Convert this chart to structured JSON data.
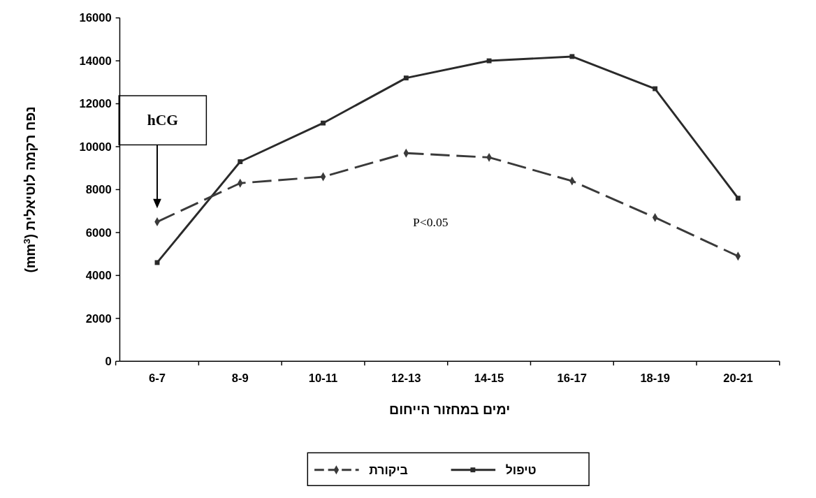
{
  "chart_data": {
    "type": "line",
    "xlabel": "ימים במחזור הייחום",
    "ylabel": "נפח רקמה לוטיאלית (mm$^{3}$)",
    "categories": [
      "6-7",
      "8-9",
      "10-11",
      "12-13",
      "14-15",
      "16-17",
      "18-19",
      "20-21"
    ],
    "series": [
      {
        "name": "טיפול",
        "color": "#2a2a2a",
        "marker": "square",
        "line_style": "solid",
        "values": [
          4600,
          9300,
          11100,
          13200,
          14000,
          14200,
          12700,
          7600
        ]
      },
      {
        "name": "ביקורת",
        "color": "#3a3a3a",
        "marker": "diamond",
        "line_style": "dashed",
        "values": [
          6500,
          8300,
          8600,
          9700,
          9500,
          8400,
          6700,
          4900
        ]
      }
    ],
    "ylim": [
      0,
      16000
    ],
    "yticks": [
      0,
      2000,
      4000,
      6000,
      8000,
      10000,
      12000,
      14000,
      16000
    ],
    "grid": false,
    "legend": "bottom",
    "annotations": [
      "hCG",
      "P<0.05"
    ]
  }
}
